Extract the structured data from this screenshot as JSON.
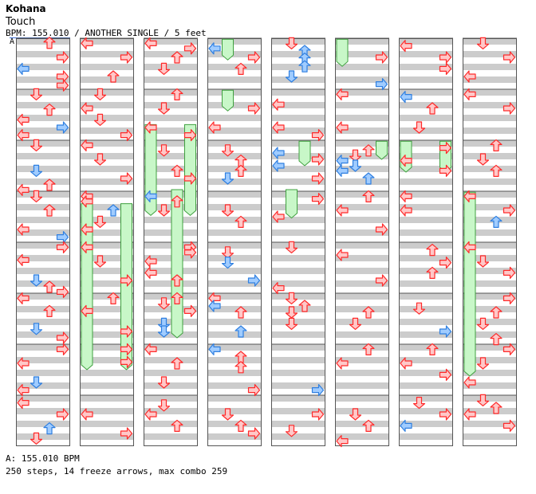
{
  "header": {
    "artist": "Kohana",
    "title": "Touch",
    "info": "BPM: 155.010 / ANOTHER SINGLE / 5 feet",
    "bpm_marker": "A"
  },
  "footer": {
    "bpm_line": "A: 155.010 BPM",
    "stats_line": "250 steps, 14 freeze arrows, max combo 259"
  },
  "colors": {
    "stripe": "#cccccc",
    "red_fill": "#ffc8c8",
    "red_stroke": "#ff2a2a",
    "blue_fill": "#a0ccff",
    "blue_stroke": "#2f7fe0",
    "freeze_fill": "#c8f7c8",
    "freeze_stroke": "#3fa03f",
    "border": "#555555"
  },
  "chart_data": {
    "type": "step-chart",
    "columns": 8,
    "measures_per_column": 8,
    "lanes": [
      "left",
      "down",
      "up",
      "right"
    ],
    "notes": [
      [
        [
          0,
          0.18,
          "up",
          "r"
        ],
        [
          0,
          0.75,
          "right",
          "r"
        ],
        [
          0,
          1.2,
          "left",
          "b"
        ],
        [
          0,
          1.5,
          "right",
          "r"
        ],
        [
          0,
          1.85,
          "right",
          "r"
        ],
        [
          1,
          0.2,
          "down",
          "r"
        ],
        [
          1,
          0.8,
          "up",
          "r"
        ],
        [
          1,
          1.2,
          "left",
          "r"
        ],
        [
          1,
          1.5,
          "right",
          "b"
        ],
        [
          1,
          1.8,
          "left",
          "r"
        ],
        [
          2,
          0.2,
          "down",
          "r"
        ],
        [
          2,
          1.2,
          "down",
          "b"
        ],
        [
          2,
          1.75,
          "up",
          "r"
        ],
        [
          2,
          1.95,
          "left",
          "r"
        ],
        [
          3,
          0.2,
          "down",
          "r"
        ],
        [
          3,
          0.75,
          "up",
          "r"
        ],
        [
          3,
          1.5,
          "left",
          "r"
        ],
        [
          3,
          1.8,
          "right",
          "b"
        ],
        [
          4,
          0.2,
          "right",
          "r"
        ],
        [
          4,
          0.7,
          "left",
          "r"
        ],
        [
          4,
          1.5,
          "down",
          "b"
        ],
        [
          4,
          1.75,
          "up",
          "r"
        ],
        [
          4,
          1.95,
          "right",
          "r"
        ],
        [
          5,
          0.2,
          "left",
          "r"
        ],
        [
          5,
          0.7,
          "up",
          "r"
        ],
        [
          5,
          1.4,
          "down",
          "b"
        ],
        [
          5,
          1.75,
          "right",
          "r"
        ],
        [
          6,
          0.2,
          "right",
          "r"
        ],
        [
          6,
          0.75,
          "left",
          "r"
        ],
        [
          6,
          1.5,
          "down",
          "b"
        ],
        [
          6,
          1.8,
          "left",
          "r"
        ],
        [
          7,
          0.3,
          "left",
          "r"
        ],
        [
          7,
          0.75,
          "right",
          "r"
        ],
        [
          7,
          1.3,
          "up",
          "b"
        ],
        [
          7,
          1.7,
          "down",
          "r"
        ]
      ],
      [
        [
          0,
          0.2,
          "left",
          "r"
        ],
        [
          0,
          0.75,
          "right",
          "r"
        ],
        [
          0,
          1.5,
          "up",
          "r"
        ],
        [
          1,
          0.2,
          "down",
          "r"
        ],
        [
          1,
          0.75,
          "left",
          "r"
        ],
        [
          1,
          1.2,
          "down",
          "r"
        ],
        [
          1,
          1.8,
          "right",
          "r"
        ],
        [
          2,
          0.2,
          "left",
          "r"
        ],
        [
          2,
          0.75,
          "down",
          "r"
        ],
        [
          2,
          1.5,
          "right",
          "r"
        ],
        [
          3,
          0.2,
          "left",
          "r"
        ],
        [
          3,
          0.4,
          "left",
          "r"
        ],
        [
          3,
          0.75,
          "up",
          "b"
        ],
        [
          3,
          1.2,
          "down",
          "r"
        ],
        [
          3,
          1.5,
          "left",
          "r"
        ],
        [
          4,
          0.2,
          "left",
          "r"
        ],
        [
          4,
          0.75,
          "down",
          "r"
        ],
        [
          4,
          1.5,
          "right",
          "r"
        ],
        [
          5,
          0.2,
          "up",
          "r"
        ],
        [
          5,
          0.7,
          "left",
          "r"
        ],
        [
          5,
          1.5,
          "right",
          "r"
        ],
        [
          6,
          0.2,
          "right",
          "r"
        ],
        [
          6,
          0.7,
          "right",
          "r"
        ],
        [
          7,
          0.75,
          "left",
          "r"
        ],
        [
          7,
          1.5,
          "right",
          "r"
        ]
      ],
      [
        [
          0,
          0.2,
          "left",
          "r"
        ],
        [
          0,
          0.4,
          "right",
          "r"
        ],
        [
          0,
          0.75,
          "up",
          "r"
        ],
        [
          0,
          1.2,
          "down",
          "r"
        ],
        [
          1,
          0.2,
          "up",
          "r"
        ],
        [
          1,
          0.75,
          "down",
          "r"
        ],
        [
          1,
          1.5,
          "left",
          "r"
        ],
        [
          1,
          1.8,
          "right",
          "r"
        ],
        [
          2,
          0.4,
          "down",
          "r"
        ],
        [
          2,
          1.2,
          "up",
          "r"
        ],
        [
          2,
          1.5,
          "right",
          "r"
        ],
        [
          3,
          0.2,
          "left",
          "b"
        ],
        [
          3,
          0.4,
          "up",
          "r"
        ],
        [
          3,
          0.75,
          "down",
          "r"
        ],
        [
          4,
          0.2,
          "right",
          "r"
        ],
        [
          4,
          0.4,
          "right",
          "r"
        ],
        [
          4,
          0.75,
          "left",
          "r"
        ],
        [
          4,
          1.2,
          "left",
          "r"
        ],
        [
          4,
          1.5,
          "up",
          "r"
        ],
        [
          5,
          0.2,
          "up",
          "r"
        ],
        [
          5,
          0.4,
          "down",
          "r"
        ],
        [
          5,
          0.7,
          "right",
          "r"
        ],
        [
          5,
          1.2,
          "down",
          "b"
        ],
        [
          5,
          1.5,
          "down",
          "b"
        ],
        [
          6,
          0.2,
          "left",
          "r"
        ],
        [
          6,
          0.75,
          "up",
          "r"
        ],
        [
          6,
          1.5,
          "down",
          "r"
        ],
        [
          7,
          0.4,
          "down",
          "r"
        ],
        [
          7,
          0.75,
          "left",
          "r"
        ],
        [
          7,
          1.2,
          "up",
          "r"
        ]
      ],
      [
        [
          0,
          0.4,
          "left",
          "b"
        ],
        [
          0,
          0.75,
          "right",
          "r"
        ],
        [
          0,
          1.2,
          "up",
          "r"
        ],
        [
          1,
          0.75,
          "right",
          "r"
        ],
        [
          1,
          1.5,
          "left",
          "r"
        ],
        [
          2,
          0.4,
          "down",
          "r"
        ],
        [
          2,
          0.8,
          "up",
          "r"
        ],
        [
          2,
          1.2,
          "up",
          "r"
        ],
        [
          2,
          1.5,
          "down",
          "b"
        ],
        [
          3,
          0.75,
          "down",
          "r"
        ],
        [
          3,
          1.2,
          "up",
          "r"
        ],
        [
          4,
          0.4,
          "down",
          "r"
        ],
        [
          4,
          0.8,
          "down",
          "b"
        ],
        [
          4,
          1.5,
          "right",
          "b"
        ],
        [
          5,
          0.2,
          "left",
          "r"
        ],
        [
          5,
          0.5,
          "left",
          "b"
        ],
        [
          5,
          0.75,
          "up",
          "r"
        ],
        [
          5,
          1.5,
          "up",
          "b"
        ],
        [
          6,
          0.2,
          "left",
          "b"
        ],
        [
          6,
          0.5,
          "up",
          "r"
        ],
        [
          6,
          0.9,
          "up",
          "r"
        ],
        [
          6,
          1.8,
          "right",
          "r"
        ],
        [
          7,
          0.75,
          "down",
          "r"
        ],
        [
          7,
          1.2,
          "up",
          "r"
        ],
        [
          7,
          1.5,
          "right",
          "r"
        ]
      ],
      [
        [
          0,
          0.2,
          "down",
          "r"
        ],
        [
          0,
          0.5,
          "up",
          "b"
        ],
        [
          0,
          0.8,
          "up",
          "b"
        ],
        [
          0,
          1.1,
          "up",
          "b"
        ],
        [
          0,
          1.5,
          "down",
          "b"
        ],
        [
          1,
          0.6,
          "left",
          "r"
        ],
        [
          1,
          1.5,
          "left",
          "r"
        ],
        [
          1,
          1.8,
          "right",
          "r"
        ],
        [
          2,
          0.5,
          "left",
          "b"
        ],
        [
          2,
          0.75,
          "right",
          "r"
        ],
        [
          2,
          1.0,
          "left",
          "b"
        ],
        [
          2,
          1.5,
          "right",
          "r"
        ],
        [
          3,
          0.3,
          "right",
          "r"
        ],
        [
          3,
          1.0,
          "left",
          "r"
        ],
        [
          4,
          0.2,
          "down",
          "r"
        ],
        [
          4,
          1.8,
          "left",
          "r"
        ],
        [
          5,
          0.2,
          "down",
          "r"
        ],
        [
          5,
          0.5,
          "up",
          "r"
        ],
        [
          5,
          0.75,
          "down",
          "r"
        ],
        [
          5,
          1.2,
          "down",
          "r"
        ],
        [
          6,
          1.8,
          "right",
          "b"
        ],
        [
          7,
          0.75,
          "right",
          "r"
        ],
        [
          7,
          1.4,
          "down",
          "r"
        ]
      ],
      [
        [
          0,
          0.75,
          "right",
          "r"
        ],
        [
          0,
          1.8,
          "right",
          "b"
        ],
        [
          1,
          0.2,
          "left",
          "r"
        ],
        [
          1,
          1.5,
          "left",
          "r"
        ],
        [
          2,
          0.4,
          "up",
          "r"
        ],
        [
          2,
          0.6,
          "down",
          "r"
        ],
        [
          2,
          0.8,
          "left",
          "b"
        ],
        [
          2,
          1.0,
          "down",
          "b"
        ],
        [
          2,
          1.2,
          "left",
          "b"
        ],
        [
          2,
          1.5,
          "up",
          "b"
        ],
        [
          3,
          0.2,
          "up",
          "r"
        ],
        [
          3,
          0.75,
          "left",
          "r"
        ],
        [
          3,
          1.5,
          "right",
          "r"
        ],
        [
          4,
          0.5,
          "left",
          "r"
        ],
        [
          4,
          1.5,
          "right",
          "r"
        ],
        [
          5,
          0.75,
          "up",
          "r"
        ],
        [
          5,
          1.2,
          "down",
          "r"
        ],
        [
          6,
          0.2,
          "up",
          "r"
        ],
        [
          6,
          0.75,
          "left",
          "r"
        ],
        [
          7,
          0.75,
          "down",
          "r"
        ],
        [
          7,
          1.2,
          "up",
          "r"
        ],
        [
          7,
          1.8,
          "left",
          "r"
        ]
      ],
      [
        [
          0,
          0.3,
          "left",
          "r"
        ],
        [
          0,
          0.75,
          "right",
          "r"
        ],
        [
          0,
          1.2,
          "right",
          "r"
        ],
        [
          1,
          0.3,
          "left",
          "b"
        ],
        [
          1,
          0.75,
          "up",
          "r"
        ],
        [
          1,
          1.5,
          "down",
          "r"
        ],
        [
          2,
          0.3,
          "right",
          "r"
        ],
        [
          2,
          0.8,
          "left",
          "r"
        ],
        [
          2,
          1.2,
          "right",
          "r"
        ],
        [
          3,
          0.2,
          "left",
          "r"
        ],
        [
          3,
          0.75,
          "left",
          "r"
        ],
        [
          4,
          0.3,
          "up",
          "r"
        ],
        [
          4,
          0.8,
          "right",
          "r"
        ],
        [
          4,
          1.2,
          "up",
          "r"
        ],
        [
          5,
          0.6,
          "down",
          "r"
        ],
        [
          5,
          1.5,
          "right",
          "b"
        ],
        [
          6,
          0.2,
          "up",
          "r"
        ],
        [
          6,
          0.75,
          "left",
          "r"
        ],
        [
          6,
          1.2,
          "right",
          "r"
        ],
        [
          7,
          0.3,
          "down",
          "r"
        ],
        [
          7,
          0.75,
          "right",
          "r"
        ],
        [
          7,
          1.2,
          "left",
          "b"
        ]
      ],
      [
        [
          0,
          0.2,
          "down",
          "r"
        ],
        [
          0,
          0.75,
          "right",
          "r"
        ],
        [
          0,
          1.5,
          "left",
          "r"
        ],
        [
          1,
          0.2,
          "left",
          "r"
        ],
        [
          1,
          0.75,
          "right",
          "r"
        ],
        [
          2,
          0.2,
          "up",
          "r"
        ],
        [
          2,
          0.75,
          "down",
          "r"
        ],
        [
          2,
          1.2,
          "up",
          "r"
        ],
        [
          3,
          0.2,
          "left",
          "r"
        ],
        [
          3,
          0.75,
          "right",
          "r"
        ],
        [
          3,
          1.2,
          "up",
          "b"
        ],
        [
          4,
          0.2,
          "left",
          "r"
        ],
        [
          4,
          0.75,
          "down",
          "r"
        ],
        [
          4,
          1.2,
          "right",
          "r"
        ],
        [
          5,
          0.2,
          "right",
          "r"
        ],
        [
          5,
          0.75,
          "up",
          "r"
        ],
        [
          5,
          1.2,
          "down",
          "r"
        ],
        [
          5,
          1.8,
          "up",
          "r"
        ],
        [
          6,
          0.2,
          "right",
          "r"
        ],
        [
          6,
          0.75,
          "down",
          "r"
        ],
        [
          6,
          1.5,
          "left",
          "r"
        ],
        [
          7,
          0.2,
          "down",
          "r"
        ],
        [
          7,
          0.5,
          "up",
          "r"
        ],
        [
          7,
          0.75,
          "left",
          "r"
        ],
        [
          7,
          1.2,
          "right",
          "r"
        ]
      ]
    ],
    "freezes": [
      [],
      [
        [
          6,
          0.55,
          7.0,
          "left"
        ],
        [
          6,
          0.55,
          7.0,
          "right"
        ]
      ],
      [
        [
          3,
          0.45,
          3.95,
          "left"
        ],
        [
          3,
          0.45,
          3.95,
          "right"
        ],
        [
          5,
          1.0,
          6.75,
          "up"
        ]
      ],
      [
        [
          0,
          0.1,
          0.85,
          "down"
        ],
        [
          2,
          0.1,
          0.85,
          "down"
        ]
      ],
      [
        [
          4,
          0.1,
          1.0,
          "up"
        ],
        [
          5,
          1.0,
          2.05,
          "down"
        ]
      ],
      [
        [
          0,
          0.1,
          1.1,
          "left"
        ],
        [
          4,
          0.1,
          0.75,
          "right"
        ]
      ],
      [
        [
          4,
          0.1,
          1.25,
          "left"
        ],
        [
          4,
          0.1,
          1.25,
          "right"
        ]
      ],
      [
        [
          6,
          0.1,
          7.25,
          "left"
        ]
      ]
    ]
  }
}
